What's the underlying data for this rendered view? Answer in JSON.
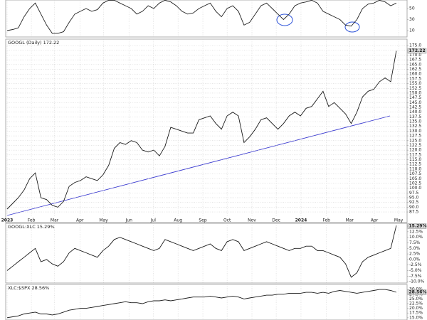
{
  "chart_data": [
    {
      "type": "line",
      "color": "#222222",
      "ylim": [
        -1.6,
        65.5
      ],
      "yticks": [
        50,
        30,
        10
      ],
      "values": [
        10,
        12,
        15,
        35,
        50,
        60,
        40,
        20,
        5,
        5,
        8,
        25,
        40,
        45,
        50,
        45,
        48,
        60,
        65,
        65,
        60,
        55,
        50,
        40,
        45,
        55,
        50,
        60,
        65,
        62,
        55,
        45,
        40,
        42,
        50,
        55,
        60,
        45,
        35,
        50,
        55,
        45,
        20,
        25,
        40,
        55,
        60,
        50,
        40,
        30,
        40,
        55,
        60,
        62,
        65,
        60,
        45,
        40,
        35,
        30,
        20,
        18,
        30,
        50,
        58,
        60,
        65,
        62,
        55,
        60
      ]
    },
    {
      "type": "line",
      "title": "GOOGL (Daily) 172.22",
      "color": "#1a1a1a",
      "ylim": [
        84.9,
        178.4
      ],
      "x": [
        0,
        1,
        2,
        3,
        4,
        5,
        6,
        7,
        8,
        9,
        10,
        11,
        12,
        13,
        14,
        15,
        16,
        17,
        18,
        19,
        20,
        21,
        22,
        23,
        24,
        25,
        26,
        27,
        28,
        29,
        30,
        31,
        32,
        33,
        34,
        35,
        36,
        37,
        38,
        39,
        40,
        41,
        42,
        43,
        44,
        45,
        46,
        47,
        48,
        49,
        50,
        51,
        52,
        53,
        54,
        55,
        56,
        57,
        58,
        59,
        60,
        61,
        62,
        63,
        64,
        65,
        66,
        67,
        68,
        69
      ],
      "xlim": [
        -0.25,
        70.9
      ],
      "xticks": [
        {
          "value": 0,
          "label": "2023"
        },
        {
          "value": 4.3,
          "label": "Feb"
        },
        {
          "value": 8.4,
          "label": "Mar"
        },
        {
          "value": 12.9,
          "label": "Apr"
        },
        {
          "value": 17.1,
          "label": "May"
        },
        {
          "value": 21.6,
          "label": "Jun"
        },
        {
          "value": 25.9,
          "label": "Jul"
        },
        {
          "value": 30.3,
          "label": "Aug"
        },
        {
          "value": 34.7,
          "label": "Sep"
        },
        {
          "value": 39,
          "label": "Oct"
        },
        {
          "value": 43.4,
          "label": "Nov"
        },
        {
          "value": 47.7,
          "label": "Dec"
        },
        {
          "value": 52.1,
          "label": "2024"
        },
        {
          "value": 56.6,
          "label": "Feb"
        },
        {
          "value": 60.7,
          "label": "Mar"
        },
        {
          "value": 65.1,
          "label": "Apr"
        },
        {
          "value": 69.4,
          "label": "May"
        }
      ],
      "yticks": [
        {
          "value": 175,
          "label": "175.0"
        },
        172.5,
        {
          "value": 170,
          "label": "170.0"
        },
        167.5,
        {
          "value": 165,
          "label": "165.0"
        },
        162.5,
        {
          "value": 160,
          "label": "160.0"
        },
        157.5,
        {
          "value": 155,
          "label": "155.0"
        },
        152.5,
        {
          "value": 150,
          "label": "150.0"
        },
        147.5,
        {
          "value": 145,
          "label": "145.0"
        },
        142.5,
        {
          "value": 140,
          "label": "140.0"
        },
        137.5,
        {
          "value": 135,
          "label": "135.0"
        },
        132.5,
        {
          "value": 130,
          "label": "130.0"
        },
        127.5,
        {
          "value": 125,
          "label": "125.0"
        },
        122.5,
        {
          "value": 120,
          "label": "120.0"
        },
        117.5,
        {
          "value": 115,
          "label": "115.0"
        },
        112.5,
        {
          "value": 110,
          "label": "110.0"
        },
        107.5,
        {
          "value": 105,
          "label": "105.0"
        },
        102.5,
        {
          "value": 100,
          "label": "100.0"
        },
        97.5,
        {
          "value": 95,
          "label": "95.0"
        },
        92.5,
        {
          "value": 90,
          "label": "90.0"
        },
        87.5
      ],
      "values": [
        89,
        92,
        95,
        99,
        105,
        108,
        95,
        94,
        91,
        90,
        93,
        101,
        103,
        104,
        106,
        105,
        104,
        107,
        112,
        121,
        124,
        123,
        125,
        124,
        120,
        119,
        120,
        117,
        122,
        132,
        131,
        130,
        129,
        129,
        136,
        137,
        138,
        134,
        131,
        138,
        140,
        138,
        124,
        127,
        131,
        136,
        137,
        134,
        131,
        134,
        138,
        140,
        138,
        142,
        143,
        147,
        151,
        143,
        145,
        142,
        139,
        134,
        140,
        148,
        151,
        152,
        156,
        158,
        156,
        172.22
      ],
      "last_label": "172.22"
    },
    {
      "type": "line",
      "title": "GOOGL:XLC 15.29%",
      "color": "#1a1a1a",
      "ylim": [
        -10.6,
        16.3
      ],
      "yticks": [
        {
          "value": 15,
          "label": "15.0%"
        },
        {
          "value": 12.5,
          "label": "12.5%"
        },
        {
          "value": 10,
          "label": "10.0%"
        },
        {
          "value": 7.5,
          "label": "7.5%"
        },
        {
          "value": 5,
          "label": "5.0%"
        },
        {
          "value": 2.5,
          "label": "2.5%"
        },
        {
          "value": 0,
          "label": "0.0%"
        },
        {
          "value": -2.5,
          "label": "-2.5%"
        },
        {
          "value": -5,
          "label": "-5.0%"
        },
        {
          "value": -7.5,
          "label": "-7.5%"
        },
        {
          "value": -10,
          "label": "-10.0%"
        }
      ],
      "values": [
        -5,
        -3,
        -1,
        1,
        3,
        5,
        -1,
        0,
        -2,
        -3,
        -1,
        3,
        5,
        4,
        3,
        2,
        1,
        4,
        6,
        9,
        10,
        9,
        8,
        7,
        6,
        5,
        4,
        5,
        9,
        8,
        7,
        6,
        5,
        4,
        5,
        6,
        7,
        5,
        4,
        8,
        9,
        8,
        4,
        5,
        6,
        7,
        8,
        7,
        6,
        5,
        4,
        5,
        5,
        6,
        6,
        4,
        4,
        3,
        2,
        1,
        -2,
        -8,
        -6,
        -1,
        1,
        2,
        3,
        4,
        5,
        15.29
      ],
      "last_label": "15.29%"
    },
    {
      "type": "line",
      "title": "XLC:$SPX 28.56%",
      "color": "#1a1a1a",
      "ylim": [
        13.8,
        32.7
      ],
      "yticks": [
        {
          "value": 30,
          "label": "30.0%"
        },
        {
          "value": 27.5,
          "label": "27.5%"
        },
        {
          "value": 25,
          "label": "25.0%"
        },
        {
          "value": 22.5,
          "label": "22.5%"
        },
        {
          "value": 20,
          "label": "20.0%"
        },
        {
          "value": 17.5,
          "label": "17.5%"
        },
        {
          "value": 15,
          "label": "15.0%"
        }
      ],
      "values": [
        15,
        15.5,
        16,
        17,
        17.5,
        18,
        17,
        17,
        16.5,
        17,
        18,
        19,
        19.5,
        20,
        20,
        20.5,
        21,
        21.5,
        22,
        22.5,
        23,
        23.5,
        23,
        23,
        22.5,
        23.5,
        24,
        24,
        24.5,
        24,
        24.5,
        25,
        25.5,
        26,
        26,
        26,
        26.5,
        26,
        25.5,
        26,
        26.5,
        26,
        25,
        25.5,
        26,
        26.5,
        27,
        27,
        27.5,
        27.5,
        28,
        28,
        28,
        28.5,
        28.5,
        28,
        28.5,
        28,
        29,
        29.5,
        29,
        28.5,
        28,
        28.5,
        29,
        29.5,
        30,
        30,
        29.5,
        28.56
      ],
      "last_label": "28.56%"
    }
  ]
}
